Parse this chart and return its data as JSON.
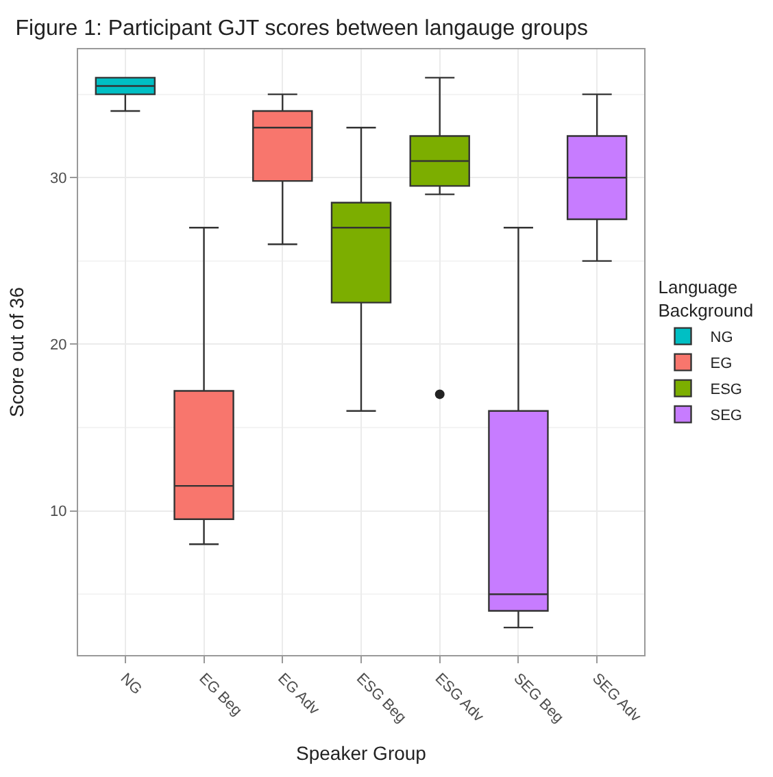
{
  "chart_data": {
    "type": "box",
    "title": "Figure 1: Participant GJT scores between langauge groups",
    "xlabel": "Speaker Group",
    "ylabel": "Score out of 36",
    "legend_title": "Language Background",
    "categories": [
      "NG",
      "EG Beg",
      "EG Adv",
      "ESG Beg",
      "ESG Adv",
      "SEG Beg",
      "SEG Adv"
    ],
    "series": [
      {
        "name": "NG",
        "color": "#00bfc4",
        "boxes": [
          {
            "low": 34,
            "q1": 35,
            "median": 35.5,
            "q3": 36,
            "high": 36
          },
          null,
          null,
          null,
          null,
          null,
          null
        ]
      },
      {
        "name": "EG",
        "color": "#f8766d",
        "boxes": [
          null,
          {
            "low": 8,
            "q1": 9.5,
            "median": 11.5,
            "q3": 17.2,
            "high": 27
          },
          {
            "low": 26,
            "q1": 29.8,
            "median": 33,
            "q3": 34,
            "high": 35
          },
          null,
          null,
          null,
          null
        ]
      },
      {
        "name": "ESG",
        "color": "#7cae00",
        "boxes": [
          null,
          null,
          null,
          {
            "low": 16,
            "q1": 22.5,
            "median": 27,
            "q3": 28.5,
            "high": 33
          },
          {
            "low": 29,
            "q1": 29.5,
            "median": 31,
            "q3": 32.5,
            "high": 36,
            "outliers": [
              17
            ]
          },
          null,
          null
        ]
      },
      {
        "name": "SEG",
        "color": "#c77cff",
        "boxes": [
          null,
          null,
          null,
          null,
          null,
          {
            "low": 3,
            "q1": 4,
            "median": 5,
            "q3": 16,
            "high": 27
          },
          {
            "low": 25,
            "q1": 27.5,
            "median": 30,
            "q3": 32.5,
            "high": 35
          }
        ]
      }
    ],
    "ylim": [
      1.35,
      37.7
    ],
    "yticks": [
      10,
      20,
      30
    ],
    "grid": true,
    "legend": "right"
  }
}
